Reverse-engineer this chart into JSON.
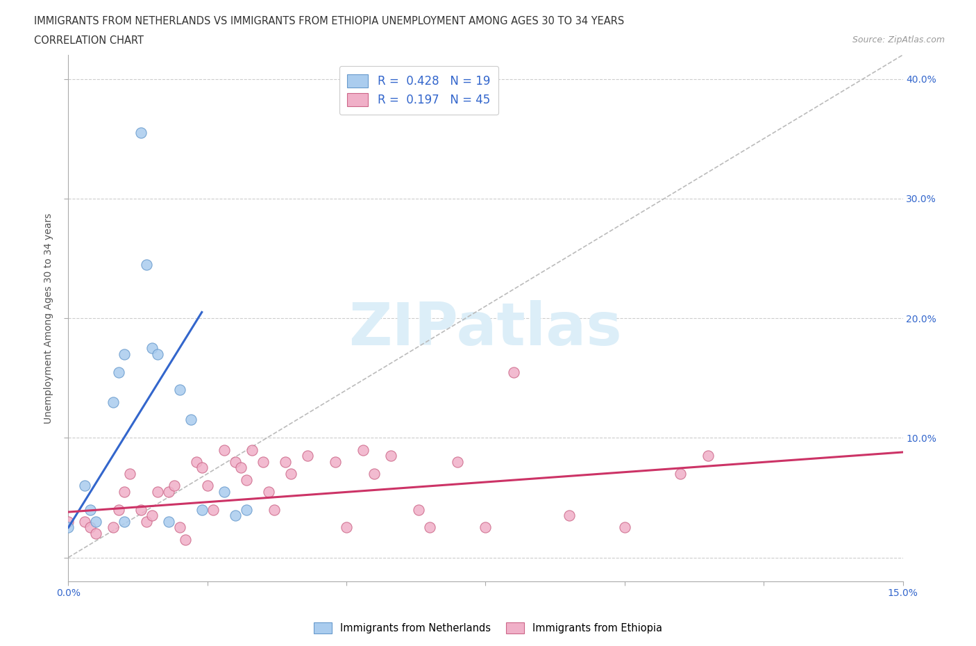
{
  "title_line1": "IMMIGRANTS FROM NETHERLANDS VS IMMIGRANTS FROM ETHIOPIA UNEMPLOYMENT AMONG AGES 30 TO 34 YEARS",
  "title_line2": "CORRELATION CHART",
  "source_text": "Source: ZipAtlas.com",
  "ylabel": "Unemployment Among Ages 30 to 34 years",
  "xlim": [
    0.0,
    0.15
  ],
  "ylim": [
    -0.02,
    0.42
  ],
  "xticks": [
    0.0,
    0.025,
    0.05,
    0.075,
    0.1,
    0.125,
    0.15
  ],
  "xticklabels": [
    "0.0%",
    "",
    "",
    "",
    "",
    "",
    "15.0%"
  ],
  "yticks": [
    0.0,
    0.1,
    0.2,
    0.3,
    0.4
  ],
  "yticklabels_right": [
    "",
    "10.0%",
    "20.0%",
    "30.0%",
    "40.0%"
  ],
  "netherlands_R": 0.428,
  "netherlands_N": 19,
  "ethiopia_R": 0.197,
  "ethiopia_N": 45,
  "netherlands_color": "#aaccee",
  "netherlands_edge": "#6699cc",
  "ethiopia_color": "#f0b0c8",
  "ethiopia_edge": "#cc6688",
  "netherlands_line_color": "#3366cc",
  "ethiopia_line_color": "#cc3366",
  "diagonal_color": "#bbbbbb",
  "watermark_color": "#dceef8",
  "legend_R_color": "#3366cc",
  "netherlands_scatter": [
    [
      0.0,
      0.025
    ],
    [
      0.003,
      0.06
    ],
    [
      0.004,
      0.04
    ],
    [
      0.005,
      0.03
    ],
    [
      0.008,
      0.13
    ],
    [
      0.009,
      0.155
    ],
    [
      0.01,
      0.17
    ],
    [
      0.01,
      0.03
    ],
    [
      0.013,
      0.355
    ],
    [
      0.014,
      0.245
    ],
    [
      0.015,
      0.175
    ],
    [
      0.016,
      0.17
    ],
    [
      0.018,
      0.03
    ],
    [
      0.02,
      0.14
    ],
    [
      0.022,
      0.115
    ],
    [
      0.024,
      0.04
    ],
    [
      0.028,
      0.055
    ],
    [
      0.03,
      0.035
    ],
    [
      0.032,
      0.04
    ]
  ],
  "ethiopia_scatter": [
    [
      0.0,
      0.03
    ],
    [
      0.003,
      0.03
    ],
    [
      0.004,
      0.025
    ],
    [
      0.005,
      0.02
    ],
    [
      0.008,
      0.025
    ],
    [
      0.009,
      0.04
    ],
    [
      0.01,
      0.055
    ],
    [
      0.011,
      0.07
    ],
    [
      0.013,
      0.04
    ],
    [
      0.014,
      0.03
    ],
    [
      0.015,
      0.035
    ],
    [
      0.016,
      0.055
    ],
    [
      0.018,
      0.055
    ],
    [
      0.019,
      0.06
    ],
    [
      0.02,
      0.025
    ],
    [
      0.021,
      0.015
    ],
    [
      0.023,
      0.08
    ],
    [
      0.024,
      0.075
    ],
    [
      0.025,
      0.06
    ],
    [
      0.026,
      0.04
    ],
    [
      0.028,
      0.09
    ],
    [
      0.03,
      0.08
    ],
    [
      0.031,
      0.075
    ],
    [
      0.032,
      0.065
    ],
    [
      0.033,
      0.09
    ],
    [
      0.035,
      0.08
    ],
    [
      0.036,
      0.055
    ],
    [
      0.037,
      0.04
    ],
    [
      0.039,
      0.08
    ],
    [
      0.04,
      0.07
    ],
    [
      0.043,
      0.085
    ],
    [
      0.048,
      0.08
    ],
    [
      0.05,
      0.025
    ],
    [
      0.053,
      0.09
    ],
    [
      0.055,
      0.07
    ],
    [
      0.058,
      0.085
    ],
    [
      0.063,
      0.04
    ],
    [
      0.065,
      0.025
    ],
    [
      0.07,
      0.08
    ],
    [
      0.075,
      0.025
    ],
    [
      0.08,
      0.155
    ],
    [
      0.09,
      0.035
    ],
    [
      0.1,
      0.025
    ],
    [
      0.11,
      0.07
    ],
    [
      0.115,
      0.085
    ]
  ],
  "netherlands_trendline": [
    [
      0.0,
      0.025
    ],
    [
      0.024,
      0.205
    ]
  ],
  "ethiopia_trendline": [
    [
      0.0,
      0.038
    ],
    [
      0.15,
      0.088
    ]
  ]
}
